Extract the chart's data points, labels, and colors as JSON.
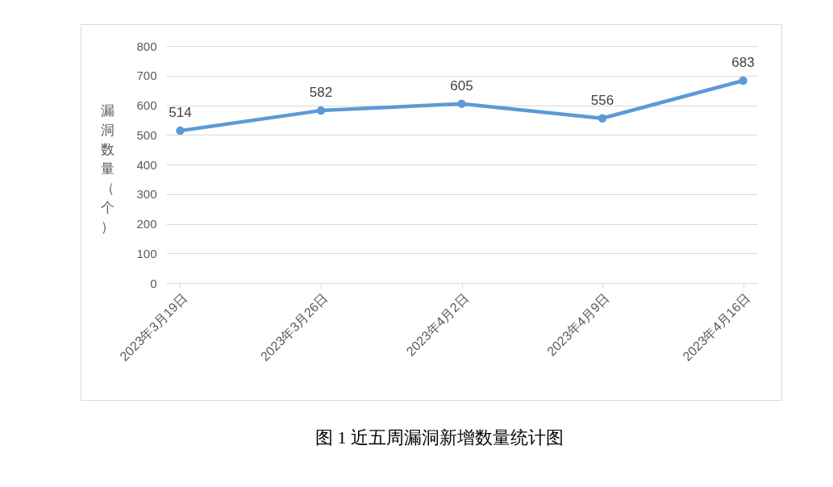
{
  "chart_data": {
    "type": "line",
    "title": "图 1  近五周漏洞新增数量统计图",
    "ylabel": "漏洞数量（个）",
    "categories": [
      "2023年3月19日",
      "2023年3月26日",
      "2023年4月2日",
      "2023年4月9日",
      "2023年4月16日"
    ],
    "series": [
      {
        "color": "#5b9bd5",
        "values": [
          514,
          582,
          605,
          556,
          683
        ]
      }
    ],
    "ylim": [
      0,
      800
    ],
    "yticks": [
      0,
      100,
      200,
      300,
      400,
      500,
      600,
      700,
      800
    ],
    "grid": "y",
    "legend": false,
    "marker": "circle",
    "data_labels": true
  }
}
